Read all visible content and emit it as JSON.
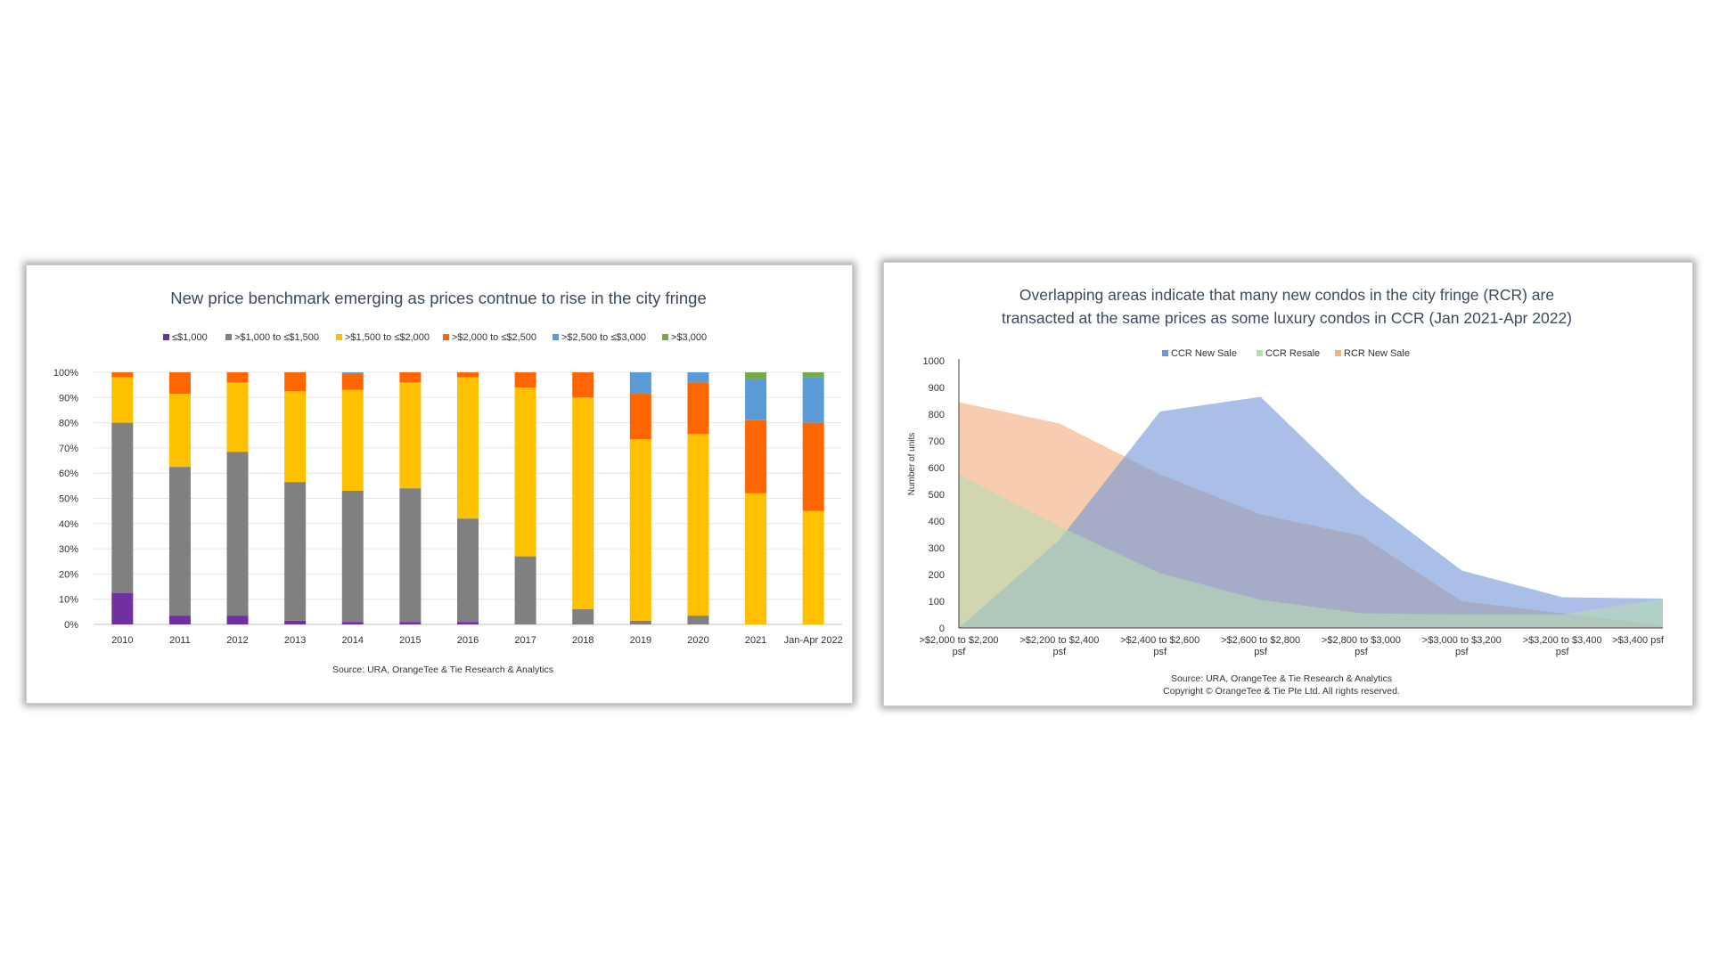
{
  "left": {
    "chart_data": {
      "type": "bar",
      "stacked": true,
      "title": "New price benchmark emerging as prices contnue to rise in the city fringe",
      "source": "Source: URA, OrangeTee & Tie Research & Analytics",
      "categories": [
        "2010",
        "2011",
        "2012",
        "2013",
        "2014",
        "2015",
        "2016",
        "2017",
        "2018",
        "2019",
        "2020",
        "2021",
        "Jan-Apr 2022"
      ],
      "ylim": [
        0,
        100
      ],
      "yticks": [
        "0%",
        "10%",
        "20%",
        "30%",
        "40%",
        "50%",
        "60%",
        "70%",
        "80%",
        "90%",
        "100%"
      ],
      "legend_position": "top",
      "grid": true,
      "series": [
        {
          "name": "≤$1,000",
          "color": "#7030a0",
          "values": [
            12.5,
            3.5,
            3.5,
            1.5,
            1,
            1,
            1,
            0,
            0,
            0,
            0,
            0,
            0
          ]
        },
        {
          "name": ">$1,000 to ≤$1,500",
          "color": "#808080",
          "values": [
            67.5,
            59,
            65,
            55,
            52,
            53,
            41,
            27,
            6,
            1.5,
            3.5,
            0,
            0
          ]
        },
        {
          "name": ">$1,500 to ≤$2,000",
          "color": "#ffc000",
          "values": [
            18,
            29,
            27.5,
            36,
            40,
            42,
            56,
            67,
            84,
            72,
            72,
            52,
            45
          ]
        },
        {
          "name": ">$2,000 to ≤$2,500",
          "color": "#ff6600",
          "values": [
            2,
            8.5,
            4,
            7.5,
            6.5,
            4,
            2,
            6,
            10,
            18,
            20.5,
            29,
            35
          ]
        },
        {
          "name": ">$2,500 to ≤$3,000",
          "color": "#5b9bd5",
          "values": [
            0,
            0,
            0,
            0,
            0.5,
            0,
            0,
            0,
            0,
            8.5,
            4,
            16.5,
            18
          ]
        },
        {
          "name": ">$3,000",
          "color": "#70ad47",
          "values": [
            0,
            0,
            0,
            0,
            0,
            0,
            0,
            0,
            0,
            0,
            0,
            2.5,
            2
          ]
        }
      ]
    }
  },
  "right": {
    "chart_data": {
      "type": "area",
      "title_lines": [
        "Overlapping areas indicate that many new condos in the city fringe (RCR) are",
        "transacted at the same prices as some luxury condos in CCR (Jan 2021-Apr 2022)"
      ],
      "ylabel": "Number of units",
      "ylim": [
        0,
        1000
      ],
      "yticks": [
        "0",
        "100",
        "200",
        "300",
        "400",
        "500",
        "600",
        "700",
        "800",
        "900",
        "1000"
      ],
      "categories": [
        [
          ">$2,000 to $2,200",
          "psf"
        ],
        [
          ">$2,200 to $2,400",
          "psf"
        ],
        [
          ">$2,400 to $2,600",
          "psf"
        ],
        [
          ">$2,600 to $2,800",
          "psf"
        ],
        [
          ">$2,800 to $3,000",
          "psf"
        ],
        [
          ">$3,000 to $3,200",
          "psf"
        ],
        [
          ">$3,200 to $3,400",
          "psf"
        ],
        [
          ">$3,400 psf"
        ]
      ],
      "legend_position": "top",
      "series": [
        {
          "name": "CCR New Sale",
          "color": "#6f95d8",
          "values": [
            0,
            330,
            810,
            865,
            500,
            215,
            115,
            110
          ]
        },
        {
          "name": "CCR Resale",
          "color": "#b7dcb2",
          "values": [
            575,
            380,
            205,
            105,
            55,
            50,
            50,
            110
          ]
        },
        {
          "name": "RCR New Sale",
          "color": "#f4b183",
          "values": [
            845,
            765,
            575,
            425,
            345,
            100,
            55,
            10
          ]
        }
      ],
      "source_lines": [
        "Source: URA, OrangeTee & Tie Research & Analytics",
        "Copyright © OrangeTee & Tie Pte Ltd. All rights reserved."
      ]
    }
  }
}
